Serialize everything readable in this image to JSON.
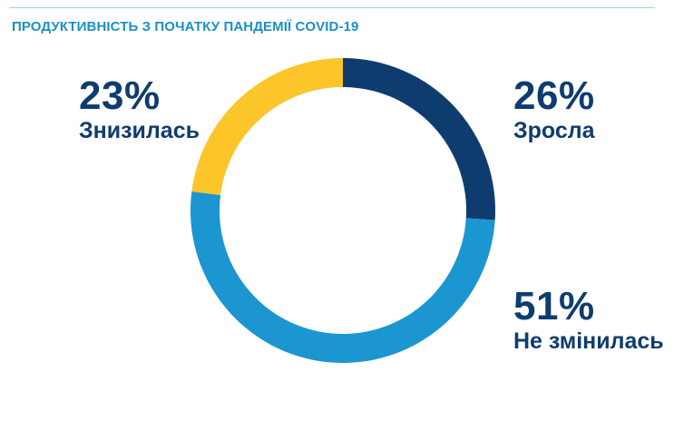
{
  "title": "ПРОДУКТИВНІСТЬ З ПОЧАТКУ ПАНДЕМІЇ COVID-19",
  "colors": {
    "title": "#1c8fc7",
    "label": "#0f3c6e",
    "increased": "#0f3c6e",
    "unchanged": "#1b96d1",
    "decreased": "#fcc52a"
  },
  "chart_data": {
    "type": "pie",
    "variant": "donut",
    "start_angle_deg": 0,
    "direction": "clockwise",
    "title": "ПРОДУКТИВНІСТЬ З ПОЧАТКУ ПАНДЕМІЇ COVID-19",
    "slices": [
      {
        "key": "increased",
        "label": "Зросла",
        "value": 26,
        "value_label": "26%"
      },
      {
        "key": "unchanged",
        "label": "Не змінилась",
        "value": 51,
        "value_label": "51%"
      },
      {
        "key": "decreased",
        "label": "Знизилась",
        "value": 23,
        "value_label": "23%"
      }
    ]
  }
}
